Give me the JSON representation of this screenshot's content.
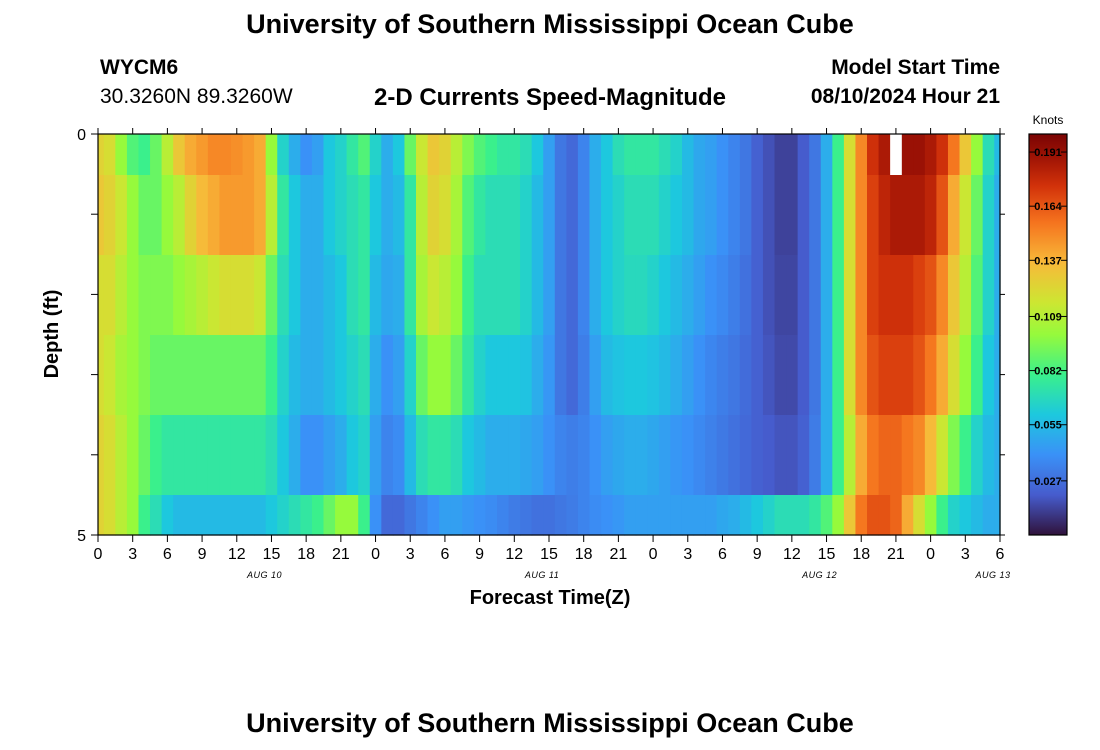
{
  "header": {
    "title": "University of Southern Mississippi Ocean Cube",
    "station": "WYCM6",
    "coordinates": "30.3260N  89.3260W",
    "subtitle": "2-D Currents Speed-Magnitude",
    "model_start_label": "Model Start Time",
    "model_start_value": "08/10/2024 Hour 21"
  },
  "footer": {
    "title": "University of Southern Mississippi Ocean Cube"
  },
  "chart_data": {
    "type": "heatmap",
    "title": "2-D Currents Speed-Magnitude",
    "xlabel": "Forecast Time(Z)",
    "ylabel": "Depth (ft)",
    "ylim": [
      0,
      5
    ],
    "y_tick_labels": [
      "0",
      "5"
    ],
    "x_tick_labels": [
      "0",
      "3",
      "6",
      "9",
      "12",
      "15",
      "18",
      "21",
      "0",
      "3",
      "6",
      "9",
      "12",
      "15",
      "18",
      "21",
      "0",
      "3",
      "6",
      "9",
      "12",
      "15",
      "18",
      "21",
      "0",
      "3",
      "6"
    ],
    "date_labels": [
      "AUG 10",
      "AUG 11",
      "AUG 12",
      "AUG 13"
    ],
    "colorbar": {
      "unit": "Knots",
      "min": 0.0,
      "max": 0.2,
      "tick_values": [
        0.191,
        0.164,
        0.137,
        0.109,
        0.082,
        0.055,
        0.027
      ],
      "tick_labels": [
        "0.191",
        "0.164",
        "0.137",
        "0.109",
        "0.082",
        "0.055",
        "0.027"
      ]
    },
    "depth_levels": [
      "0.0-0.5",
      "0.5-1.5",
      "1.5-2.5",
      "2.5-3.5",
      "3.5-4.5",
      "4.5-5.0"
    ],
    "missing_cells": [
      {
        "hour": 69,
        "depth_level": 0
      }
    ],
    "hours": [
      0,
      1,
      2,
      3,
      4,
      5,
      6,
      7,
      8,
      9,
      10,
      11,
      12,
      13,
      14,
      15,
      16,
      17,
      18,
      19,
      20,
      21,
      22,
      23,
      24,
      25,
      26,
      27,
      28,
      29,
      30,
      31,
      32,
      33,
      34,
      35,
      36,
      37,
      38,
      39,
      40,
      41,
      42,
      43,
      44,
      45,
      46,
      47,
      48,
      49,
      50,
      51,
      52,
      53,
      54,
      55,
      56,
      57,
      58,
      59,
      60,
      61,
      62,
      63,
      64,
      65,
      66,
      67,
      68,
      69,
      70,
      71,
      72,
      73,
      74,
      75,
      76,
      77,
      78
    ],
    "speed_knots": [
      [
        0.125,
        0.12,
        0.1,
        0.085,
        0.08,
        0.09,
        0.11,
        0.13,
        0.14,
        0.145,
        0.15,
        0.15,
        0.148,
        0.145,
        0.14,
        0.1,
        0.065,
        0.05,
        0.04,
        0.045,
        0.06,
        0.065,
        0.075,
        0.085,
        0.065,
        0.05,
        0.06,
        0.09,
        0.115,
        0.13,
        0.125,
        0.11,
        0.095,
        0.085,
        0.08,
        0.075,
        0.075,
        0.07,
        0.06,
        0.045,
        0.03,
        0.025,
        0.035,
        0.05,
        0.06,
        0.07,
        0.075,
        0.075,
        0.075,
        0.07,
        0.065,
        0.055,
        0.048,
        0.045,
        0.04,
        0.035,
        0.03,
        0.022,
        0.017,
        0.013,
        0.013,
        0.02,
        0.03,
        0.05,
        0.08,
        0.12,
        0.15,
        0.175,
        0.185,
        null,
        0.19,
        0.19,
        0.185,
        0.175,
        0.155,
        0.13,
        0.1,
        0.07,
        0.055
      ],
      [
        0.13,
        0.125,
        0.115,
        0.1,
        0.09,
        0.09,
        0.1,
        0.11,
        0.125,
        0.135,
        0.14,
        0.145,
        0.145,
        0.145,
        0.14,
        0.11,
        0.075,
        0.06,
        0.05,
        0.05,
        0.06,
        0.065,
        0.07,
        0.075,
        0.06,
        0.05,
        0.055,
        0.075,
        0.11,
        0.125,
        0.12,
        0.105,
        0.085,
        0.075,
        0.07,
        0.07,
        0.07,
        0.065,
        0.055,
        0.045,
        0.03,
        0.025,
        0.035,
        0.05,
        0.06,
        0.065,
        0.07,
        0.07,
        0.07,
        0.065,
        0.06,
        0.055,
        0.048,
        0.045,
        0.04,
        0.035,
        0.03,
        0.022,
        0.017,
        0.013,
        0.013,
        0.02,
        0.03,
        0.05,
        0.08,
        0.12,
        0.15,
        0.17,
        0.18,
        0.185,
        0.185,
        0.185,
        0.18,
        0.165,
        0.14,
        0.115,
        0.09,
        0.065,
        0.05
      ],
      [
        0.12,
        0.12,
        0.11,
        0.1,
        0.095,
        0.095,
        0.095,
        0.1,
        0.105,
        0.11,
        0.115,
        0.12,
        0.12,
        0.12,
        0.115,
        0.09,
        0.07,
        0.06,
        0.05,
        0.05,
        0.055,
        0.06,
        0.07,
        0.075,
        0.055,
        0.048,
        0.05,
        0.075,
        0.105,
        0.115,
        0.11,
        0.1,
        0.08,
        0.07,
        0.07,
        0.07,
        0.07,
        0.065,
        0.055,
        0.045,
        0.03,
        0.025,
        0.035,
        0.05,
        0.06,
        0.065,
        0.068,
        0.068,
        0.065,
        0.06,
        0.055,
        0.05,
        0.045,
        0.04,
        0.037,
        0.033,
        0.028,
        0.022,
        0.017,
        0.014,
        0.014,
        0.02,
        0.03,
        0.05,
        0.08,
        0.12,
        0.15,
        0.17,
        0.175,
        0.175,
        0.175,
        0.17,
        0.165,
        0.15,
        0.13,
        0.11,
        0.085,
        0.065,
        0.05
      ],
      [
        0.12,
        0.115,
        0.105,
        0.1,
        0.095,
        0.09,
        0.09,
        0.09,
        0.09,
        0.09,
        0.09,
        0.09,
        0.09,
        0.09,
        0.09,
        0.08,
        0.065,
        0.055,
        0.05,
        0.05,
        0.055,
        0.06,
        0.065,
        0.07,
        0.05,
        0.04,
        0.045,
        0.065,
        0.09,
        0.1,
        0.1,
        0.09,
        0.075,
        0.065,
        0.06,
        0.06,
        0.06,
        0.058,
        0.05,
        0.042,
        0.03,
        0.025,
        0.033,
        0.045,
        0.055,
        0.058,
        0.06,
        0.06,
        0.058,
        0.055,
        0.05,
        0.045,
        0.04,
        0.036,
        0.033,
        0.03,
        0.026,
        0.022,
        0.018,
        0.015,
        0.015,
        0.02,
        0.03,
        0.05,
        0.08,
        0.12,
        0.15,
        0.165,
        0.17,
        0.17,
        0.17,
        0.165,
        0.155,
        0.14,
        0.12,
        0.1,
        0.08,
        0.06,
        0.05
      ],
      [
        0.125,
        0.12,
        0.11,
        0.1,
        0.09,
        0.08,
        0.075,
        0.075,
        0.075,
        0.075,
        0.075,
        0.075,
        0.075,
        0.075,
        0.075,
        0.07,
        0.06,
        0.05,
        0.04,
        0.04,
        0.045,
        0.05,
        0.06,
        0.065,
        0.045,
        0.035,
        0.038,
        0.055,
        0.07,
        0.075,
        0.075,
        0.07,
        0.06,
        0.055,
        0.05,
        0.05,
        0.05,
        0.048,
        0.045,
        0.04,
        0.035,
        0.033,
        0.035,
        0.04,
        0.045,
        0.048,
        0.05,
        0.05,
        0.048,
        0.045,
        0.042,
        0.04,
        0.037,
        0.034,
        0.031,
        0.028,
        0.025,
        0.022,
        0.02,
        0.018,
        0.018,
        0.022,
        0.032,
        0.05,
        0.08,
        0.11,
        0.14,
        0.155,
        0.16,
        0.16,
        0.155,
        0.15,
        0.135,
        0.115,
        0.095,
        0.08,
        0.065,
        0.055,
        0.05
      ],
      [
        0.125,
        0.12,
        0.11,
        0.1,
        0.08,
        0.07,
        0.06,
        0.055,
        0.055,
        0.055,
        0.055,
        0.055,
        0.055,
        0.055,
        0.055,
        0.06,
        0.065,
        0.07,
        0.075,
        0.08,
        0.09,
        0.1,
        0.1,
        0.08,
        0.04,
        0.025,
        0.025,
        0.03,
        0.035,
        0.04,
        0.045,
        0.045,
        0.042,
        0.04,
        0.038,
        0.035,
        0.032,
        0.03,
        0.028,
        0.028,
        0.03,
        0.032,
        0.035,
        0.038,
        0.04,
        0.042,
        0.045,
        0.045,
        0.045,
        0.045,
        0.045,
        0.045,
        0.045,
        0.045,
        0.048,
        0.05,
        0.055,
        0.06,
        0.065,
        0.07,
        0.07,
        0.07,
        0.075,
        0.085,
        0.1,
        0.13,
        0.155,
        0.165,
        0.165,
        0.16,
        0.14,
        0.12,
        0.1,
        0.08,
        0.065,
        0.06,
        0.055,
        0.05,
        0.05
      ]
    ]
  }
}
